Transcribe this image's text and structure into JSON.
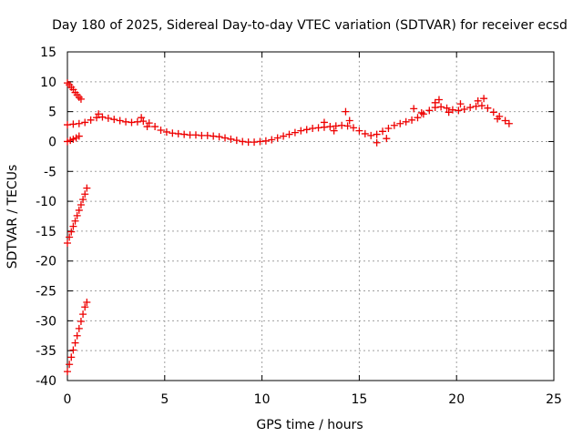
{
  "chart_data": {
    "type": "scatter",
    "title": "Day 180 of 2025, Sidereal Day-to-day VTEC variation (SDTVAR) for receiver ecsd",
    "xlabel": "GPS time / hours",
    "ylabel": "SDTVAR / TECUs",
    "xlim": [
      0,
      25
    ],
    "ylim": [
      -40,
      15
    ],
    "xticks": [
      0,
      5,
      10,
      15,
      20,
      25
    ],
    "yticks": [
      -40,
      -35,
      -30,
      -25,
      -20,
      -15,
      -10,
      -5,
      0,
      5,
      10,
      15
    ],
    "grid": true,
    "marker": "plus",
    "color": "#ee0000",
    "series": [
      {
        "name": "segment-early-high",
        "x": [
          0.0,
          0.1,
          0.2,
          0.3,
          0.4,
          0.5,
          0.6,
          0.7
        ],
        "y": [
          9.8,
          9.5,
          9.1,
          8.7,
          8.2,
          7.8,
          7.4,
          7.1
        ]
      },
      {
        "name": "segment-early-zero",
        "x": [
          0.0,
          0.15,
          0.3,
          0.45,
          0.6
        ],
        "y": [
          0.0,
          0.2,
          0.4,
          0.6,
          0.9
        ]
      },
      {
        "name": "segment-early-minus17",
        "x": [
          0.0,
          0.1,
          0.2,
          0.3,
          0.4,
          0.5,
          0.6,
          0.7,
          0.8,
          0.9,
          1.0
        ],
        "y": [
          -17.0,
          -16.0,
          -15.1,
          -14.2,
          -13.3,
          -12.4,
          -11.5,
          -10.6,
          -9.7,
          -8.8,
          -7.8
        ]
      },
      {
        "name": "segment-early-minus38",
        "x": [
          0.0,
          0.1,
          0.2,
          0.3,
          0.4,
          0.5,
          0.6,
          0.7,
          0.8,
          0.9,
          1.0
        ],
        "y": [
          -38.5,
          -37.3,
          -36.1,
          -34.9,
          -33.7,
          -32.5,
          -31.3,
          -30.1,
          -28.9,
          -27.7,
          -26.9
        ]
      },
      {
        "name": "segment-main",
        "x": [
          0.0,
          0.3,
          0.6,
          0.9,
          1.2,
          1.5,
          1.8,
          2.1,
          2.4,
          2.7,
          3.0,
          3.3,
          3.6,
          3.9,
          4.2,
          4.5,
          4.8,
          5.1,
          5.4,
          5.7,
          6.0,
          6.3,
          6.6,
          6.9,
          7.2,
          7.5,
          7.8,
          8.1,
          8.4,
          8.7,
          9.0,
          9.3,
          9.6,
          9.9,
          10.2,
          10.5,
          10.8,
          11.1,
          11.4,
          11.7,
          12.0,
          12.3,
          12.6,
          12.9,
          13.2,
          13.5,
          13.8,
          14.1,
          14.4,
          14.7,
          15.0,
          15.3,
          15.6,
          15.9,
          16.2,
          16.5,
          16.8,
          17.1,
          17.4,
          17.7,
          18.0,
          18.3,
          18.6,
          18.9,
          19.2,
          19.5,
          19.8,
          20.1,
          20.4,
          20.7,
          21.0,
          21.3,
          21.6,
          21.9,
          22.2,
          22.5,
          22.7
        ],
        "y": [
          2.8,
          2.9,
          3.0,
          3.2,
          3.6,
          4.0,
          4.1,
          3.9,
          3.7,
          3.5,
          3.3,
          3.2,
          3.3,
          3.4,
          3.1,
          2.5,
          1.9,
          1.6,
          1.4,
          1.3,
          1.2,
          1.1,
          1.1,
          1.0,
          1.0,
          0.9,
          0.8,
          0.6,
          0.4,
          0.2,
          0.0,
          -0.1,
          -0.1,
          0.0,
          0.1,
          0.3,
          0.6,
          0.9,
          1.2,
          1.5,
          1.8,
          2.0,
          2.2,
          2.3,
          2.4,
          2.5,
          2.6,
          2.7,
          2.6,
          2.3,
          1.8,
          1.3,
          1.0,
          1.2,
          1.7,
          2.2,
          2.7,
          3.0,
          3.3,
          3.6,
          4.0,
          4.6,
          5.2,
          5.7,
          5.8,
          5.6,
          5.3,
          5.2,
          5.4,
          5.7,
          5.9,
          6.0,
          5.6,
          4.9,
          4.2,
          3.5,
          3.0
        ]
      },
      {
        "name": "segment-noisy",
        "x": [
          1.6,
          3.8,
          4.1,
          13.2,
          13.7,
          14.3,
          14.5,
          15.9,
          16.4,
          17.8,
          18.2,
          18.9,
          19.1,
          19.6,
          20.2,
          21.1,
          21.4,
          22.1
        ],
        "y": [
          4.6,
          4.0,
          2.5,
          3.2,
          1.8,
          5.0,
          3.5,
          -0.2,
          0.5,
          5.5,
          4.8,
          6.5,
          7.0,
          4.9,
          6.3,
          6.8,
          7.2,
          3.8
        ]
      }
    ]
  }
}
